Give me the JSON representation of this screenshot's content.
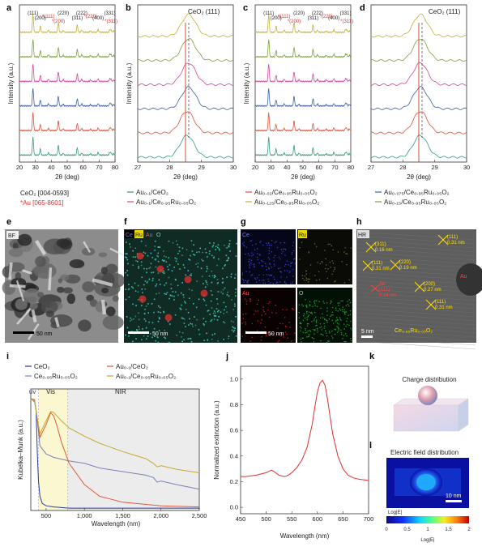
{
  "panel_labels": [
    "a",
    "b",
    "c",
    "d",
    "e",
    "f",
    "g",
    "h",
    "i",
    "j",
    "k",
    "l"
  ],
  "colors": {
    "ceo2": "#3a9a78",
    "au_ceo2": "#e0503a",
    "ru": "#3d5fa8",
    "au_ceru": "#d8449a",
    "teal": "#2e9c8c",
    "olive": "#7ba33a",
    "gold": "#c8b034",
    "red": "#e03030",
    "i_ceo2": "#2a3a9a",
    "i_ceru": "#7a80b8",
    "i_au": "#e05a3a",
    "i_auceru": "#c8a830",
    "j_line": "#e03030",
    "vis_band": "#fbf7d0",
    "nir_band": "#ececec",
    "ref_line": "#c0442a"
  },
  "common": {
    "xlabel_2theta": "2θ (deg)",
    "ylabel_intensity": "Intensity (a.u.)",
    "ceo2_peak": "CeO₂ (111)"
  },
  "panel_a": {
    "ref_black": "CeO₂ [004-0593]",
    "ref_red": "*Au [065-8601]",
    "peaks_black": [
      "(111)",
      "(200)",
      "(220)",
      "(311)",
      "(222)",
      "(400)",
      "(331)"
    ],
    "peaks_red": [
      "(111)",
      "(200)",
      "(220)",
      "(311)"
    ]
  },
  "panel_b": {
    "legend": [
      "Au₀.₁/CeO₂",
      "Au₀.₁/Ce₀.₉₅Ru₀.₀₅O₂"
    ]
  },
  "panel_c": {
    "legend": [
      "Au₀.₀₂/Ce₀.₉₅Ru₀.₀₅O₂",
      "Au₀.₁₂₅/Ce₀.₉₅Ru₀.₀₅O₂"
    ]
  },
  "panel_d": {
    "legend": [
      "Au₀.₀₇₅/Ce₀.₉₅Ru₀.₀₅O₂",
      "Au₀.₁₅/Ce₀.₉₅Ru₀.₀₅O₂"
    ]
  },
  "panel_e": {
    "label": "BF",
    "scale": "50 nm"
  },
  "panel_f": {
    "labels": [
      "Ce",
      "Ru",
      "Au",
      "O"
    ],
    "scale": "50 nm"
  },
  "panel_g": {
    "labels": [
      "Ce",
      "Ru",
      "Au",
      "O"
    ],
    "scale": "50 nm"
  },
  "panel_h": {
    "label": "HR",
    "annotations": [
      {
        "plane": "(311)",
        "d": "0.16 nm"
      },
      {
        "plane": "(111)",
        "d": "0.31 nm"
      },
      {
        "plane": "(220)",
        "d": "0.19 nm"
      },
      {
        "plane": "(111)",
        "d": "0.31 nm"
      },
      {
        "plane": "(200)",
        "d": "0.27 nm"
      },
      {
        "plane": "(111)",
        "d": "0.31 nm"
      }
    ],
    "au_label": "Au",
    "au_plane": "(111)",
    "au_d": "0.24 nm",
    "caption": "Ce₀.₉₅Ru₀.₀₅O₂",
    "scale": "5 nm"
  },
  "panel_i": {
    "legend": [
      "CeO₂",
      "Ce₀.₉₅Ru₀.₀₅O₂",
      "Au₀.₁/CeO₂",
      "Au₀.₁/Ce₀.₉₅Ru₀.₀₅O₂"
    ],
    "uv": "UV",
    "vis": "Vis",
    "nir": "NIR"
  },
  "panel_k": {
    "title": "Charge distribution"
  },
  "panel_l": {
    "title": "Electric field distribution",
    "scale": "10 nm",
    "cb_label": "Log|E|",
    "cb_title": "Log|E|",
    "cb_ticks": [
      "0",
      "0.5",
      "1",
      "1.5",
      "2"
    ]
  },
  "chart_data": [
    {
      "id": "a",
      "type": "line",
      "xlabel": "2θ (deg)",
      "ylabel": "Intensity (a.u.)",
      "xlim": [
        20,
        80
      ],
      "xticks": [
        20,
        30,
        40,
        50,
        60,
        70,
        80
      ],
      "peaks_2theta": [
        28.5,
        33.1,
        38.2,
        44.4,
        47.5,
        56.3,
        59.1,
        64.6,
        69.4,
        76.7,
        77.5,
        79.1
      ],
      "series_colors": [
        "#3a9a78",
        "#e0503a",
        "#3d5fa8",
        "#d8449a",
        "#7ba33a",
        "#c8b034"
      ]
    },
    {
      "id": "b",
      "type": "line",
      "title": "CeO₂ (111)",
      "xlabel": "2θ (deg)",
      "ylabel": "Intensity (a.u.)",
      "xlim": [
        27,
        30
      ],
      "xticks": [
        27,
        28,
        29,
        30
      ],
      "reference_line": 28.5,
      "peak_centers": [
        28.55,
        28.55,
        28.6,
        28.6,
        28.6,
        28.6
      ],
      "series_colors": [
        "#2e9c8c",
        "#e0503a",
        "#3d5fa8",
        "#d8449a",
        "#7ba33a",
        "#c8b034"
      ]
    },
    {
      "id": "c",
      "type": "line",
      "xlabel": "2θ (deg)",
      "ylabel": "Intensity (a.u.)",
      "xlim": [
        20,
        80
      ],
      "xticks": [
        20,
        30,
        40,
        50,
        60,
        70,
        80
      ],
      "peaks_2theta": [
        28.5,
        33.1,
        38.2,
        44.4,
        47.5,
        56.3,
        59.1,
        64.6,
        69.4,
        76.7,
        77.5,
        79.1
      ],
      "series_colors": [
        "#3a9a78",
        "#e0503a",
        "#3d5fa8",
        "#d8449a",
        "#7ba33a",
        "#c8b034"
      ]
    },
    {
      "id": "d",
      "type": "line",
      "title": "CeO₂ (111)",
      "xlabel": "2θ (deg)",
      "xlim": [
        27,
        30
      ],
      "xticks": [
        27,
        28,
        29,
        30
      ],
      "reference_line": 28.5,
      "series_colors": [
        "#2e9c8c",
        "#e0503a",
        "#3d5fa8",
        "#d8449a",
        "#7ba33a",
        "#c8b034"
      ]
    },
    {
      "id": "i",
      "type": "line",
      "xlabel": "Wavelength (nm)",
      "ylabel": "Kubelka–Munk (a.u.)",
      "xlim": [
        300,
        2500
      ],
      "xticks": [
        500,
        1000,
        1500,
        2000,
        2500
      ],
      "bands": [
        {
          "name": "UV",
          "from": 300,
          "to": 400
        },
        {
          "name": "Vis",
          "from": 400,
          "to": 780
        },
        {
          "name": "NIR",
          "from": 780,
          "to": 2500
        }
      ],
      "series": [
        {
          "name": "CeO₂",
          "color": "#2a3a9a",
          "x": [
            300,
            350,
            370,
            385,
            400,
            420,
            450,
            500,
            600,
            800,
            1000,
            1500,
            2000,
            2500
          ],
          "y": [
            0.95,
            0.93,
            0.85,
            0.5,
            0.25,
            0.12,
            0.06,
            0.04,
            0.03,
            0.02,
            0.02,
            0.02,
            0.02,
            0.02
          ]
        },
        {
          "name": "Ce₀.₉₅Ru₀.₀₅O₂",
          "color": "#7a80b8",
          "x": [
            300,
            350,
            380,
            420,
            500,
            600,
            800,
            1000,
            1200,
            1500,
            1800,
            1900,
            1950,
            2000,
            2200,
            2500
          ],
          "y": [
            0.95,
            0.92,
            0.8,
            0.55,
            0.48,
            0.45,
            0.42,
            0.4,
            0.36,
            0.33,
            0.3,
            0.28,
            0.24,
            0.25,
            0.22,
            0.18
          ]
        },
        {
          "name": "Au₀.₁/CeO₂",
          "color": "#e05a3a",
          "x": [
            300,
            350,
            380,
            420,
            500,
            560,
            600,
            650,
            700,
            800,
            1000,
            1200,
            1500,
            2000,
            2500
          ],
          "y": [
            0.95,
            0.94,
            0.8,
            0.62,
            0.73,
            0.83,
            0.8,
            0.7,
            0.58,
            0.4,
            0.22,
            0.12,
            0.07,
            0.04,
            0.03
          ]
        },
        {
          "name": "Au₀.₁/Ce₀.₉₅Ru₀.₀₅O₂",
          "color": "#c8a830",
          "x": [
            300,
            350,
            380,
            420,
            500,
            560,
            600,
            700,
            800,
            1000,
            1200,
            1500,
            1800,
            1900,
            1950,
            2000,
            2200,
            2400,
            2500
          ],
          "y": [
            0.95,
            0.93,
            0.8,
            0.65,
            0.76,
            0.84,
            0.83,
            0.76,
            0.7,
            0.63,
            0.57,
            0.5,
            0.44,
            0.4,
            0.37,
            0.38,
            0.35,
            0.33,
            0.32
          ]
        }
      ]
    },
    {
      "id": "j",
      "type": "line",
      "xlabel": "Wavelength (nm)",
      "ylabel": "Normalized extinction (a.u.)",
      "xlim": [
        450,
        700
      ],
      "ylim": [
        -0.05,
        1.1
      ],
      "xticks": [
        450,
        500,
        550,
        600,
        650,
        700
      ],
      "yticks": [
        0.0,
        0.2,
        0.4,
        0.6,
        0.8,
        1.0
      ],
      "series": [
        {
          "name": "",
          "color": "#e03030",
          "x": [
            450,
            460,
            470,
            480,
            490,
            500,
            505,
            510,
            515,
            520,
            525,
            530,
            535,
            540,
            545,
            550,
            560,
            570,
            580,
            590,
            595,
            600,
            605,
            610,
            615,
            620,
            625,
            630,
            640,
            650,
            660,
            670,
            680,
            690,
            700
          ],
          "y": [
            0.24,
            0.24,
            0.245,
            0.25,
            0.26,
            0.27,
            0.28,
            0.29,
            0.28,
            0.265,
            0.25,
            0.245,
            0.24,
            0.245,
            0.255,
            0.27,
            0.31,
            0.37,
            0.47,
            0.65,
            0.78,
            0.9,
            0.97,
            0.99,
            0.95,
            0.84,
            0.7,
            0.57,
            0.4,
            0.3,
            0.25,
            0.23,
            0.22,
            0.215,
            0.21
          ]
        }
      ]
    }
  ]
}
